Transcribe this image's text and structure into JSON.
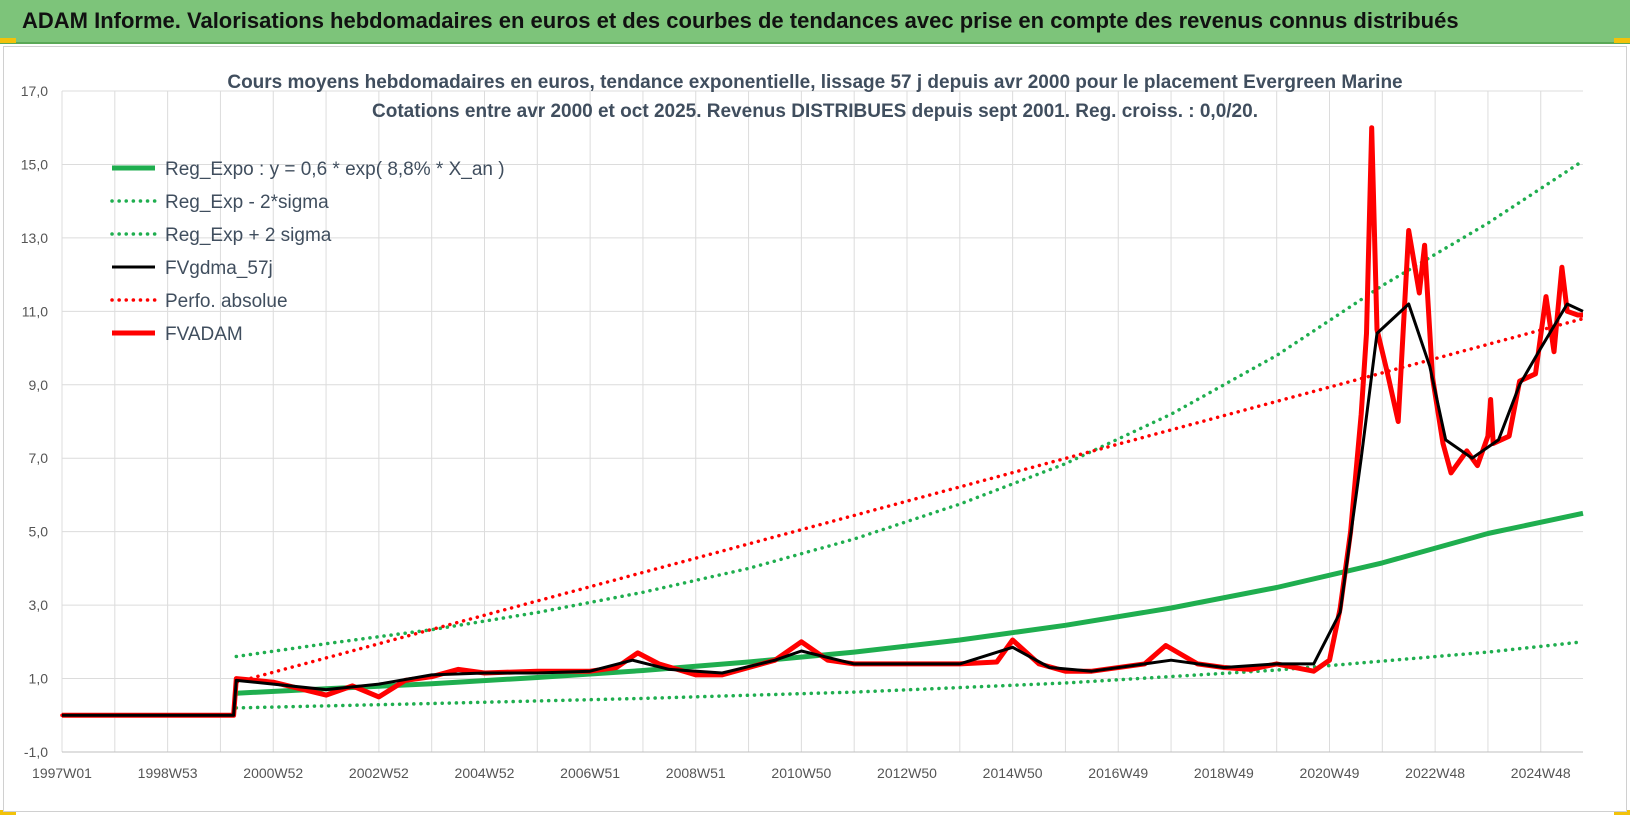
{
  "banner": {
    "title": "ADAM Informe. Valorisations hebdomadaires en euros et des courbes de tendances avec prise en compte des revenus connus distribués"
  },
  "colors": {
    "banner_bg": "#7dc47a",
    "reg_green": "#1fae4f",
    "ma_black": "#000000",
    "price_red": "#ff0000",
    "grid": "#dcdcdc"
  },
  "chart_data": {
    "type": "line",
    "title": "Cours moyens hebdomadaires en euros, tendance exponentielle, lissage 57 j depuis avr 2000 pour le placement Evergreen  Marine",
    "subtitle": "Cotations entre avr 2000 et oct 2025.  Revenus DISTRIBUES depuis sept 2001.  Reg. croiss. : 0,0/20.",
    "xlabel": "",
    "ylabel": "",
    "x_unit": "year",
    "xlim": [
      1997.0,
      2025.8
    ],
    "ylim": [
      -1,
      17
    ],
    "y_ticks": [
      "-1,0",
      "1,0",
      "3,0",
      "5,0",
      "7,0",
      "9,0",
      "11,0",
      "13,0",
      "15,0",
      "17,0"
    ],
    "x_ticks": [
      {
        "label": "1997W01",
        "x": 1997.0
      },
      {
        "label": "1998W53",
        "x": 1999.0
      },
      {
        "label": "2000W52",
        "x": 2001.0
      },
      {
        "label": "2002W52",
        "x": 2003.0
      },
      {
        "label": "2004W52",
        "x": 2005.0
      },
      {
        "label": "2006W51",
        "x": 2007.0
      },
      {
        "label": "2008W51",
        "x": 2009.0
      },
      {
        "label": "2010W50",
        "x": 2011.0
      },
      {
        "label": "2012W50",
        "x": 2013.0
      },
      {
        "label": "2014W50",
        "x": 2015.0
      },
      {
        "label": "2016W49",
        "x": 2017.0
      },
      {
        "label": "2018W49",
        "x": 2019.0
      },
      {
        "label": "2020W49",
        "x": 2021.0
      },
      {
        "label": "2022W48",
        "x": 2023.0
      },
      {
        "label": "2024W48",
        "x": 2025.0
      }
    ],
    "grid": true,
    "legend_position": "top-left",
    "series": [
      {
        "name": "Reg_Expo : y = 0,6 * exp( 8,8% *  X_an )",
        "style": "solid-thick",
        "color": "#1fae4f",
        "points": [
          [
            2000.3,
            0.6
          ],
          [
            2002.0,
            0.72
          ],
          [
            2004.0,
            0.86
          ],
          [
            2006.0,
            1.03
          ],
          [
            2008.0,
            1.22
          ],
          [
            2010.0,
            1.45
          ],
          [
            2012.0,
            1.72
          ],
          [
            2014.0,
            2.05
          ],
          [
            2016.0,
            2.45
          ],
          [
            2018.0,
            2.92
          ],
          [
            2020.0,
            3.48
          ],
          [
            2022.0,
            4.15
          ],
          [
            2024.0,
            4.95
          ],
          [
            2025.8,
            5.5
          ]
        ]
      },
      {
        "name": "Reg_Exp - 2*sigma",
        "style": "dotted",
        "color": "#1fae4f",
        "points": [
          [
            2000.3,
            0.2
          ],
          [
            2004.0,
            0.32
          ],
          [
            2008.0,
            0.46
          ],
          [
            2012.0,
            0.63
          ],
          [
            2016.0,
            0.88
          ],
          [
            2020.0,
            1.23
          ],
          [
            2024.0,
            1.72
          ],
          [
            2025.8,
            2.0
          ]
        ]
      },
      {
        "name": "Reg_Exp + 2 sigma",
        "style": "dotted",
        "color": "#1fae4f",
        "points": [
          [
            2000.3,
            1.6
          ],
          [
            2002.0,
            1.95
          ],
          [
            2004.0,
            2.33
          ],
          [
            2006.0,
            2.8
          ],
          [
            2008.0,
            3.35
          ],
          [
            2010.0,
            4.0
          ],
          [
            2012.0,
            4.8
          ],
          [
            2014.0,
            5.75
          ],
          [
            2016.0,
            6.85
          ],
          [
            2018.0,
            8.2
          ],
          [
            2020.0,
            9.8
          ],
          [
            2022.0,
            11.7
          ],
          [
            2024.0,
            13.4
          ],
          [
            2025.8,
            15.1
          ]
        ]
      },
      {
        "name": "FVgdma_57j",
        "style": "solid",
        "color": "#000000",
        "points": [
          [
            1997.0,
            0
          ],
          [
            2000.25,
            0
          ],
          [
            2000.3,
            0.95
          ],
          [
            2001.0,
            0.85
          ],
          [
            2002.0,
            0.7
          ],
          [
            2003.0,
            0.85
          ],
          [
            2004.0,
            1.1
          ],
          [
            2005.0,
            1.15
          ],
          [
            2006.0,
            1.15
          ],
          [
            2007.0,
            1.2
          ],
          [
            2007.8,
            1.5
          ],
          [
            2008.5,
            1.25
          ],
          [
            2009.5,
            1.15
          ],
          [
            2010.5,
            1.5
          ],
          [
            2011.0,
            1.75
          ],
          [
            2012.0,
            1.4
          ],
          [
            2013.0,
            1.4
          ],
          [
            2014.0,
            1.4
          ],
          [
            2015.0,
            1.85
          ],
          [
            2015.7,
            1.3
          ],
          [
            2016.5,
            1.2
          ],
          [
            2017.5,
            1.4
          ],
          [
            2018.0,
            1.5
          ],
          [
            2019.0,
            1.3
          ],
          [
            2020.0,
            1.4
          ],
          [
            2020.7,
            1.4
          ],
          [
            2021.2,
            2.8
          ],
          [
            2021.6,
            7.0
          ],
          [
            2021.9,
            10.4
          ],
          [
            2022.5,
            11.2
          ],
          [
            2022.9,
            9.5
          ],
          [
            2023.2,
            7.5
          ],
          [
            2023.7,
            7.0
          ],
          [
            2024.2,
            7.5
          ],
          [
            2024.6,
            9.0
          ],
          [
            2025.0,
            10.0
          ],
          [
            2025.5,
            11.2
          ],
          [
            2025.8,
            11.0
          ]
        ]
      },
      {
        "name": "Perfo. absolue",
        "style": "dotted",
        "color": "#ff0000",
        "points": [
          [
            1997.0,
            0
          ],
          [
            2000.25,
            0
          ],
          [
            2000.3,
            0.9
          ],
          [
            2025.8,
            10.8
          ]
        ]
      },
      {
        "name": "FVADAM",
        "style": "solid-thick",
        "color": "#ff0000",
        "points": [
          [
            1997.0,
            0
          ],
          [
            2000.25,
            0
          ],
          [
            2000.3,
            1.0
          ],
          [
            2001.0,
            0.9
          ],
          [
            2002.0,
            0.55
          ],
          [
            2002.5,
            0.8
          ],
          [
            2003.0,
            0.5
          ],
          [
            2003.5,
            0.95
          ],
          [
            2004.0,
            1.05
          ],
          [
            2004.5,
            1.25
          ],
          [
            2005.0,
            1.15
          ],
          [
            2006.0,
            1.2
          ],
          [
            2007.0,
            1.2
          ],
          [
            2007.5,
            1.3
          ],
          [
            2007.9,
            1.7
          ],
          [
            2008.3,
            1.4
          ],
          [
            2009.0,
            1.1
          ],
          [
            2009.5,
            1.1
          ],
          [
            2010.5,
            1.5
          ],
          [
            2011.0,
            2.0
          ],
          [
            2011.5,
            1.5
          ],
          [
            2012.0,
            1.4
          ],
          [
            2013.0,
            1.4
          ],
          [
            2014.0,
            1.4
          ],
          [
            2014.7,
            1.45
          ],
          [
            2015.0,
            2.05
          ],
          [
            2015.5,
            1.4
          ],
          [
            2016.0,
            1.2
          ],
          [
            2016.5,
            1.2
          ],
          [
            2017.5,
            1.4
          ],
          [
            2017.9,
            1.9
          ],
          [
            2018.5,
            1.4
          ],
          [
            2019.0,
            1.3
          ],
          [
            2019.5,
            1.25
          ],
          [
            2020.0,
            1.4
          ],
          [
            2020.7,
            1.2
          ],
          [
            2021.0,
            1.5
          ],
          [
            2021.2,
            2.9
          ],
          [
            2021.4,
            5.0
          ],
          [
            2021.6,
            8.2
          ],
          [
            2021.7,
            10.4
          ],
          [
            2021.8,
            16.0
          ],
          [
            2021.9,
            10.5
          ],
          [
            2022.1,
            9.3
          ],
          [
            2022.3,
            8.0
          ],
          [
            2022.5,
            13.2
          ],
          [
            2022.7,
            11.5
          ],
          [
            2022.8,
            12.8
          ],
          [
            2022.95,
            9.2
          ],
          [
            2023.15,
            7.4
          ],
          [
            2023.3,
            6.6
          ],
          [
            2023.6,
            7.2
          ],
          [
            2023.8,
            6.8
          ],
          [
            2024.0,
            7.6
          ],
          [
            2024.05,
            8.6
          ],
          [
            2024.1,
            7.4
          ],
          [
            2024.4,
            7.6
          ],
          [
            2024.6,
            9.1
          ],
          [
            2024.9,
            9.3
          ],
          [
            2025.1,
            11.4
          ],
          [
            2025.25,
            9.9
          ],
          [
            2025.4,
            12.2
          ],
          [
            2025.5,
            11.0
          ],
          [
            2025.7,
            10.9
          ],
          [
            2025.8,
            10.9
          ]
        ]
      }
    ]
  }
}
